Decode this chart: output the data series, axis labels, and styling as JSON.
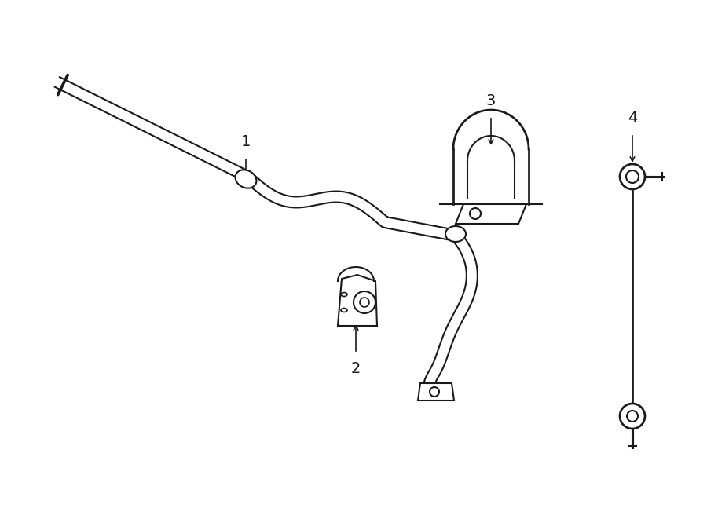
{
  "background_color": "#ffffff",
  "line_color": "#1a1a1a",
  "lw": 1.5,
  "fig_w": 9.0,
  "fig_h": 6.61,
  "dpi": 100
}
